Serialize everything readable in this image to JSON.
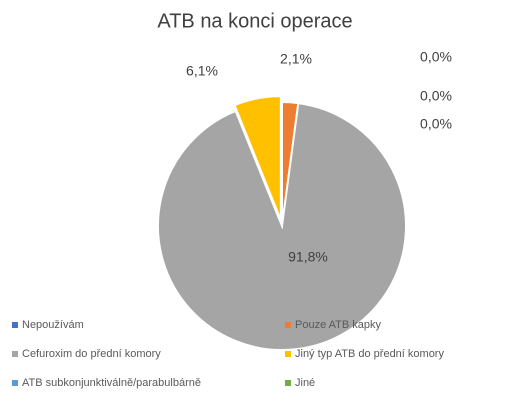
{
  "chart_data": {
    "type": "pie",
    "title": "ATB na konci operace",
    "categories": [
      "Nepoužívám",
      "Pouze ATB kapky",
      "Cefuroxim do přední komory",
      "Jiný typ ATB do přední komory",
      "ATB subkonjunktiválně/parabulbárně",
      "Jiné"
    ],
    "values": [
      0.0,
      2.1,
      91.8,
      6.1,
      0.0,
      0.0
    ],
    "value_labels": [
      "0,0%",
      "2,1%",
      "91,8%",
      "6,1%",
      "0,0%",
      "0,0%"
    ],
    "colors": [
      "#4472c4",
      "#ed7d31",
      "#a5a5a5",
      "#ffc000",
      "#5b9bd5",
      "#70ad47"
    ],
    "legend": "bottom"
  }
}
